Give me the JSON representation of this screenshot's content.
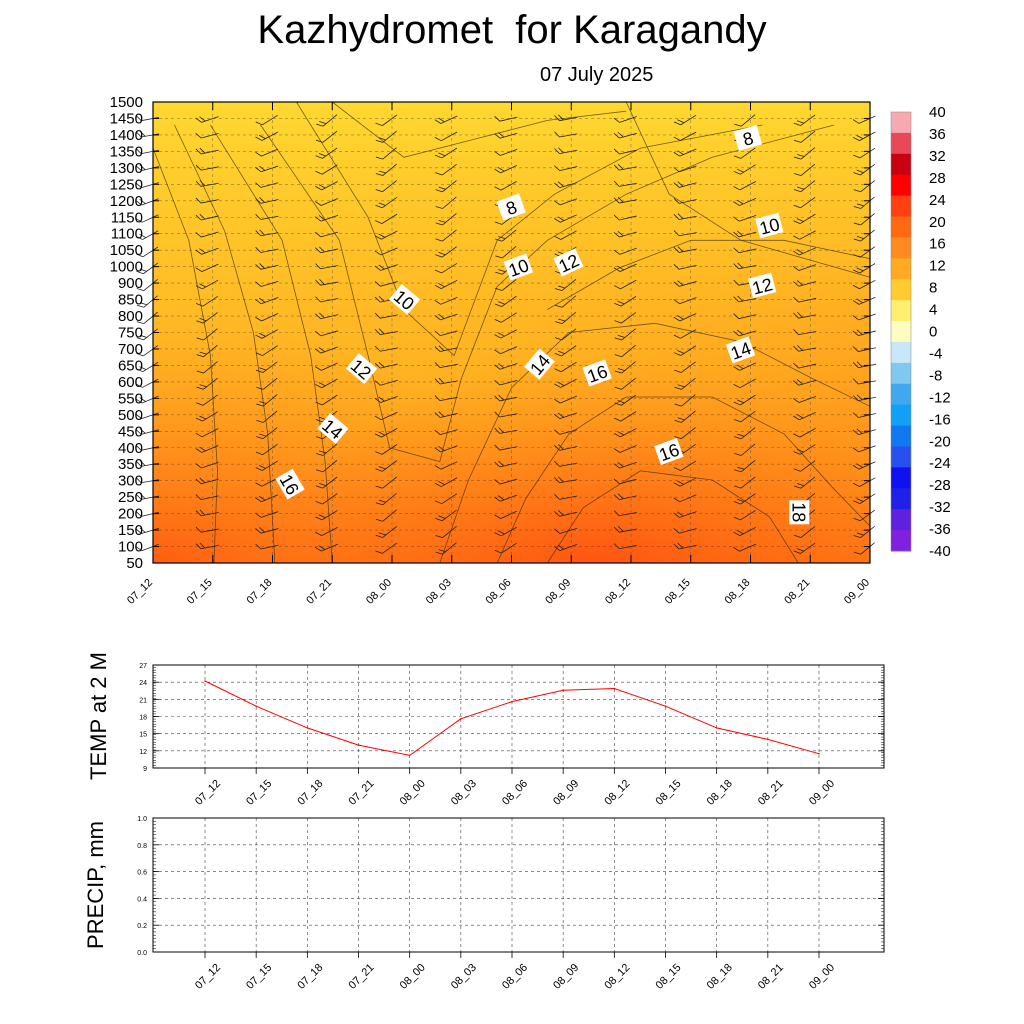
{
  "title": "Kazhydromet  for Karagandy",
  "subtitle": "07 July 2025",
  "chart_data": [
    {
      "type": "heatmap",
      "description_of_series": "cross-section of temperature vs height and time",
      "x_ticks": [
        "07_12",
        "07_15",
        "07_18",
        "07_21",
        "08_00",
        "08_03",
        "08_06",
        "08_09",
        "08_12",
        "08_15",
        "08_18",
        "08_21",
        "09_00"
      ],
      "y_ticks": [
        50,
        100,
        150,
        200,
        250,
        300,
        350,
        400,
        450,
        500,
        550,
        600,
        650,
        700,
        750,
        800,
        850,
        900,
        1000,
        1050,
        1100,
        1150,
        1200,
        1250,
        1300,
        1350,
        1400,
        1450,
        1500
      ],
      "ylim": [
        50,
        1500
      ],
      "colorbar": {
        "labels": [
          40,
          36,
          32,
          28,
          24,
          20,
          16,
          12,
          8,
          4,
          0,
          -4,
          -8,
          -12,
          -16,
          -20,
          -24,
          -28,
          -32,
          -36,
          -40
        ],
        "colors": [
          "#f8a8b0",
          "#e84858",
          "#c80010",
          "#ff0000",
          "#ff4010",
          "#ff6a10",
          "#ff8a20",
          "#ffaa20",
          "#ffcc30",
          "#ffee70",
          "#fffcc0",
          "#c8e8f8",
          "#80c8f0",
          "#40a8f0",
          "#10a0f8",
          "#1078f0",
          "#2850f0",
          "#1010f0",
          "#2020e8",
          "#6020e0",
          "#8020e0"
        ]
      },
      "grid": true,
      "temperature_contour_labels": [
        "8",
        "8",
        "10",
        "10",
        "10",
        "12",
        "12",
        "12",
        "14",
        "14",
        "14",
        "16",
        "16",
        "16",
        "18"
      ]
    },
    {
      "type": "line",
      "ylabel": "TEMP at 2 M",
      "categories": [
        "07_12",
        "07_15",
        "07_18",
        "07_21",
        "08_00",
        "08_03",
        "08_06",
        "08_09",
        "08_12",
        "08_15",
        "08_18",
        "08_21",
        "09_00"
      ],
      "series": [
        {
          "color": "#ff0000",
          "values": [
            24.2,
            19.8,
            16.0,
            13.0,
            11.2,
            17.6,
            20.6,
            22.6,
            22.9,
            19.8,
            16.0,
            14.0,
            11.5
          ]
        }
      ],
      "y_ticks": [
        9,
        12,
        15,
        18,
        21,
        24,
        27
      ],
      "ylim": [
        9,
        27
      ],
      "grid": true
    },
    {
      "type": "line",
      "ylabel": "PRECIP, mm",
      "categories": [
        "07_12",
        "07_15",
        "07_18",
        "07_21",
        "08_00",
        "08_03",
        "08_06",
        "08_09",
        "08_12",
        "08_15",
        "08_18",
        "08_21",
        "09_00"
      ],
      "series": [
        {
          "color": "#00aa00",
          "values": [
            0,
            0,
            0,
            0,
            0,
            0,
            0,
            0,
            0,
            0,
            0,
            0,
            0
          ]
        }
      ],
      "y_ticks": [
        "0.0",
        "0.2",
        "0.4",
        "0.6",
        "0.8",
        "1.0"
      ],
      "ylim": [
        0,
        1
      ],
      "grid": true
    }
  ]
}
